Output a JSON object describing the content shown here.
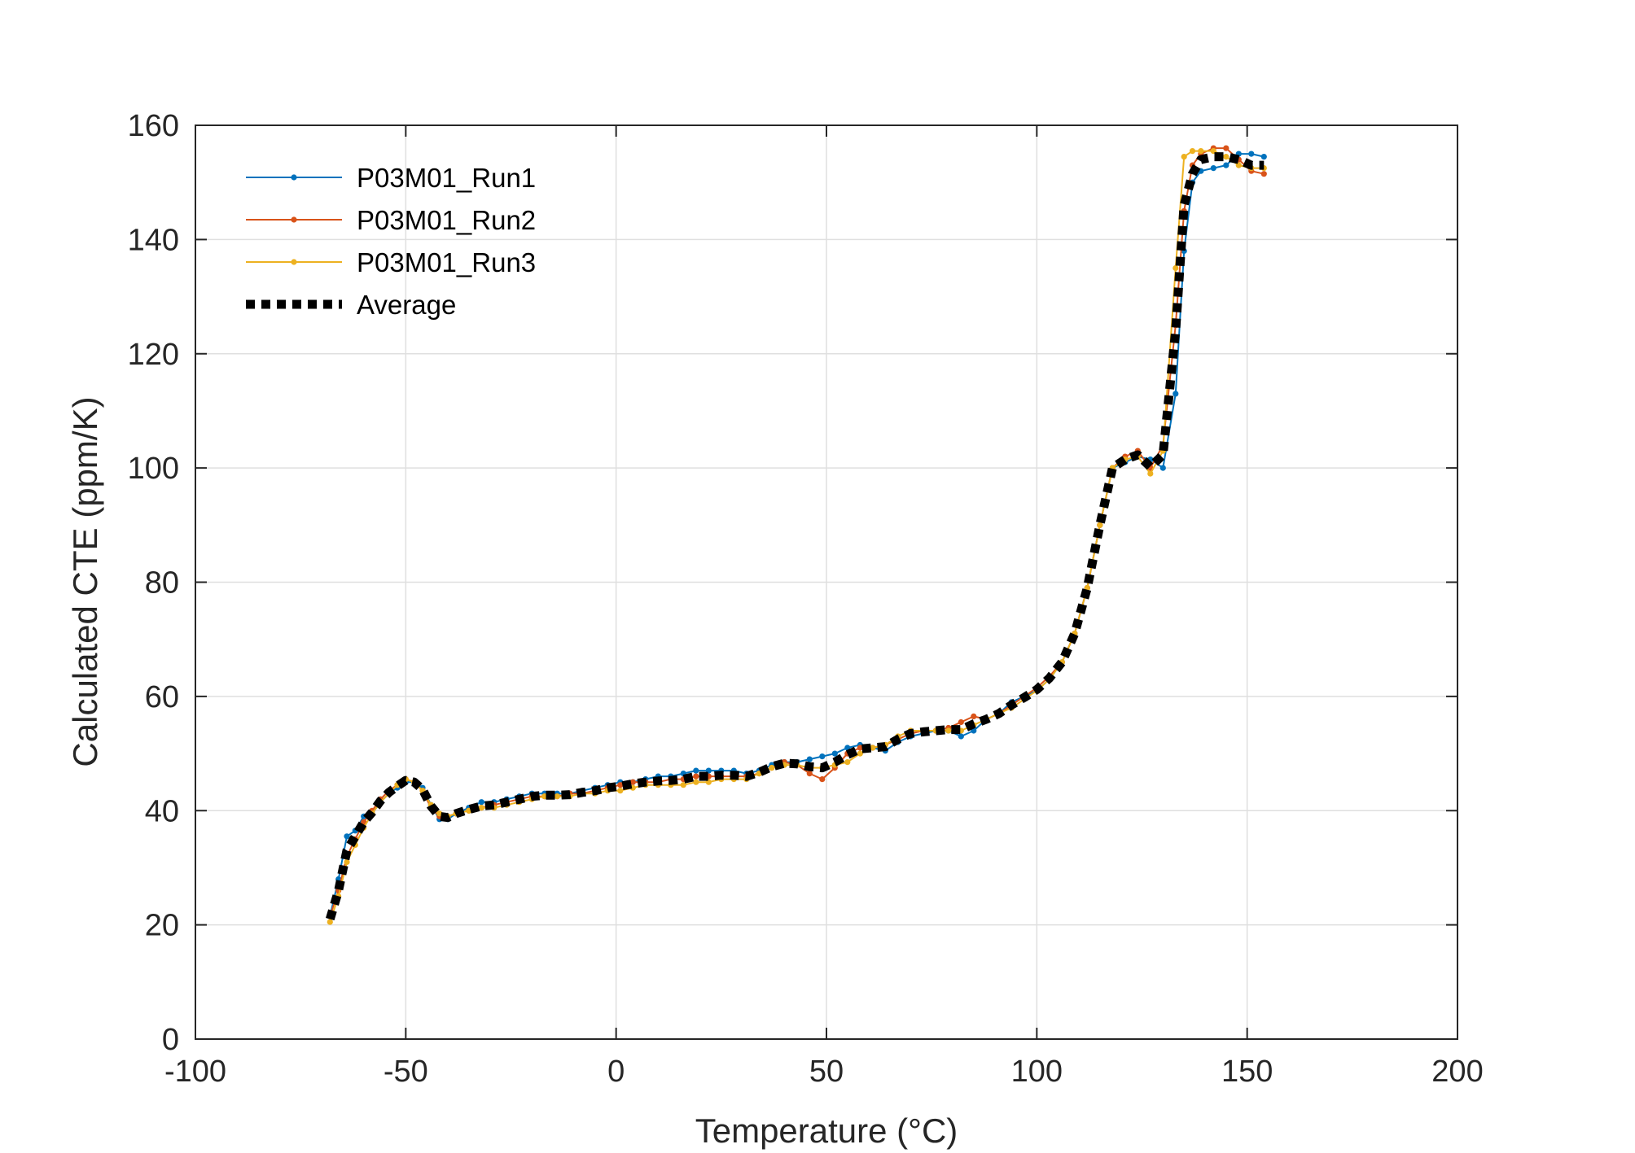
{
  "chart_data": {
    "type": "line",
    "title": "",
    "xlabel": "Temperature (°C)",
    "ylabel": "Calculated CTE (ppm/K)",
    "xlim": [
      -100,
      200
    ],
    "ylim": [
      0,
      160
    ],
    "xticks": [
      -100,
      -50,
      0,
      50,
      100,
      150,
      200
    ],
    "yticks": [
      0,
      20,
      40,
      60,
      80,
      100,
      120,
      140,
      160
    ],
    "grid": true,
    "legend_position": "top-left",
    "series": [
      {
        "name": "P03M01_Run1",
        "color": "#0072BD",
        "style": "solid-with-markers",
        "x": [
          -68,
          -66,
          -64,
          -62,
          -60,
          -58,
          -56,
          -54,
          -52,
          -50,
          -48,
          -46,
          -44,
          -42,
          -40,
          -38,
          -35,
          -32,
          -29,
          -26,
          -23,
          -20,
          -17,
          -14,
          -11,
          -8,
          -5,
          -2,
          1,
          4,
          7,
          10,
          13,
          16,
          19,
          22,
          25,
          28,
          31,
          34,
          37,
          40,
          43,
          46,
          49,
          52,
          55,
          58,
          61,
          64,
          67,
          70,
          73,
          76,
          79,
          82,
          85,
          88,
          91,
          94,
          97,
          100,
          103,
          106,
          109,
          112,
          115,
          118,
          121,
          124,
          127,
          130,
          133,
          135,
          137,
          139,
          142,
          145,
          148,
          151,
          154
        ],
        "y": [
          21.5,
          28,
          35.5,
          36.5,
          39,
          39.5,
          41.5,
          43,
          44,
          45,
          45,
          44,
          41,
          38.5,
          38.5,
          39.5,
          40.5,
          41.5,
          41.5,
          42,
          42.5,
          43,
          43,
          43,
          43,
          43.5,
          44,
          44.5,
          45,
          45,
          45.5,
          46,
          46,
          46.5,
          47,
          47,
          47,
          47,
          46.5,
          47,
          48,
          48.5,
          48.5,
          49,
          49.5,
          50,
          51,
          51.5,
          51,
          50.5,
          52,
          53,
          53.5,
          54,
          54,
          53,
          54,
          56,
          57,
          59,
          60,
          61,
          63,
          66,
          71,
          79,
          90,
          100,
          101,
          102,
          101.5,
          100,
          113,
          138,
          150,
          152,
          152.5,
          153,
          155,
          155,
          154.5
        ]
      },
      {
        "name": "P03M01_Run2",
        "color": "#D95319",
        "style": "solid-with-markers",
        "x": [
          -68,
          -66,
          -64,
          -62,
          -60,
          -58,
          -56,
          -54,
          -52,
          -50,
          -48,
          -46,
          -44,
          -42,
          -40,
          -38,
          -35,
          -32,
          -29,
          -26,
          -23,
          -20,
          -17,
          -14,
          -11,
          -8,
          -5,
          -2,
          1,
          4,
          7,
          10,
          13,
          16,
          19,
          22,
          25,
          28,
          31,
          34,
          37,
          40,
          43,
          46,
          49,
          52,
          55,
          58,
          61,
          64,
          67,
          70,
          73,
          76,
          79,
          82,
          85,
          88,
          91,
          94,
          97,
          100,
          103,
          106,
          109,
          112,
          115,
          118,
          121,
          124,
          127,
          130,
          133,
          135,
          137,
          139,
          142,
          145,
          148,
          151,
          154
        ],
        "y": [
          21.5,
          26,
          32,
          35,
          38,
          40,
          42,
          43.5,
          44.5,
          45.5,
          45,
          43.5,
          40.5,
          39,
          39,
          39.5,
          40,
          40.5,
          41,
          41.5,
          42,
          42.5,
          42.5,
          42.5,
          43,
          43,
          43.5,
          44,
          44.5,
          45,
          45,
          45,
          45.5,
          45.5,
          46,
          46,
          46,
          46,
          46,
          46.5,
          47.5,
          48.5,
          48,
          46.5,
          45.5,
          47.5,
          50,
          51,
          51,
          51.5,
          52.5,
          53.5,
          54,
          54,
          54.5,
          55.5,
          56.5,
          56,
          57,
          58.5,
          60,
          61.5,
          63.5,
          66,
          71,
          79,
          90,
          100,
          102,
          103,
          100,
          104,
          125,
          145,
          153,
          155,
          156,
          156,
          154,
          152,
          151.5
        ]
      },
      {
        "name": "P03M01_Run3",
        "color": "#EDB120",
        "style": "solid-with-markers",
        "x": [
          -68,
          -66,
          -64,
          -62,
          -60,
          -58,
          -56,
          -54,
          -52,
          -50,
          -48,
          -46,
          -44,
          -42,
          -40,
          -38,
          -35,
          -32,
          -29,
          -26,
          -23,
          -20,
          -17,
          -14,
          -11,
          -8,
          -5,
          -2,
          1,
          4,
          7,
          10,
          13,
          16,
          19,
          22,
          25,
          28,
          31,
          34,
          37,
          40,
          43,
          46,
          49,
          52,
          55,
          58,
          61,
          64,
          67,
          70,
          73,
          76,
          79,
          82,
          85,
          88,
          91,
          94,
          97,
          100,
          103,
          106,
          109,
          112,
          115,
          118,
          121,
          124,
          127,
          130,
          133,
          135,
          137,
          139,
          142,
          145,
          148,
          151,
          154
        ],
        "y": [
          20.5,
          25,
          31,
          34,
          37,
          39.5,
          41.5,
          43,
          44.5,
          45.5,
          45,
          43.5,
          41,
          39.5,
          39,
          39.5,
          40,
          40.5,
          40.5,
          41,
          41.5,
          42,
          42.5,
          42.5,
          42.5,
          43,
          43,
          43.5,
          43.5,
          44,
          44.5,
          44.5,
          44.5,
          44.5,
          45,
          45,
          45.5,
          45.5,
          45.5,
          46.5,
          47.5,
          48,
          48,
          47.5,
          47.5,
          48,
          48.5,
          50,
          51,
          51.5,
          53,
          54,
          54,
          54,
          54,
          54,
          55,
          56,
          57,
          58,
          59.5,
          61,
          63,
          66,
          71,
          79,
          90,
          100,
          101.5,
          102,
          99,
          103,
          135,
          154.5,
          155.5,
          155.5,
          155.5,
          154.5,
          153,
          152.5,
          152.5
        ]
      },
      {
        "name": "Average",
        "color": "#000000",
        "style": "dotted-thick",
        "x": [
          -68,
          -66,
          -64,
          -62,
          -60,
          -58,
          -56,
          -54,
          -52,
          -50,
          -48,
          -46,
          -44,
          -42,
          -40,
          -38,
          -35,
          -32,
          -29,
          -26,
          -23,
          -20,
          -17,
          -14,
          -11,
          -8,
          -5,
          -2,
          1,
          4,
          7,
          10,
          13,
          16,
          19,
          22,
          25,
          28,
          31,
          34,
          37,
          40,
          43,
          46,
          49,
          52,
          55,
          58,
          61,
          64,
          67,
          70,
          73,
          76,
          79,
          82,
          85,
          88,
          91,
          94,
          97,
          100,
          103,
          106,
          109,
          112,
          115,
          118,
          121,
          124,
          127,
          130,
          133,
          135,
          137,
          139,
          142,
          145,
          148,
          151,
          154
        ],
        "y": [
          21,
          26,
          33,
          35.5,
          38,
          39.7,
          41.7,
          43.2,
          44.3,
          45.3,
          45,
          43.7,
          40.8,
          39,
          38.8,
          39.5,
          40.2,
          40.8,
          41,
          41.5,
          42,
          42.5,
          42.7,
          42.7,
          42.8,
          43.2,
          43.5,
          44,
          44.3,
          44.7,
          45,
          45.2,
          45.3,
          45.5,
          46,
          46,
          46.2,
          46.2,
          46,
          46.7,
          47.7,
          48.3,
          48.2,
          47.7,
          47.5,
          48.5,
          49.8,
          50.8,
          51,
          51.2,
          52.5,
          53.5,
          53.8,
          54,
          54.2,
          54.2,
          55.2,
          56,
          57,
          58.5,
          59.8,
          61.2,
          63.2,
          66,
          71,
          79,
          90,
          100,
          101.5,
          102.3,
          100.2,
          102.3,
          124,
          146,
          151.5,
          154,
          154.5,
          154.5,
          154,
          153,
          153
        ]
      }
    ]
  }
}
